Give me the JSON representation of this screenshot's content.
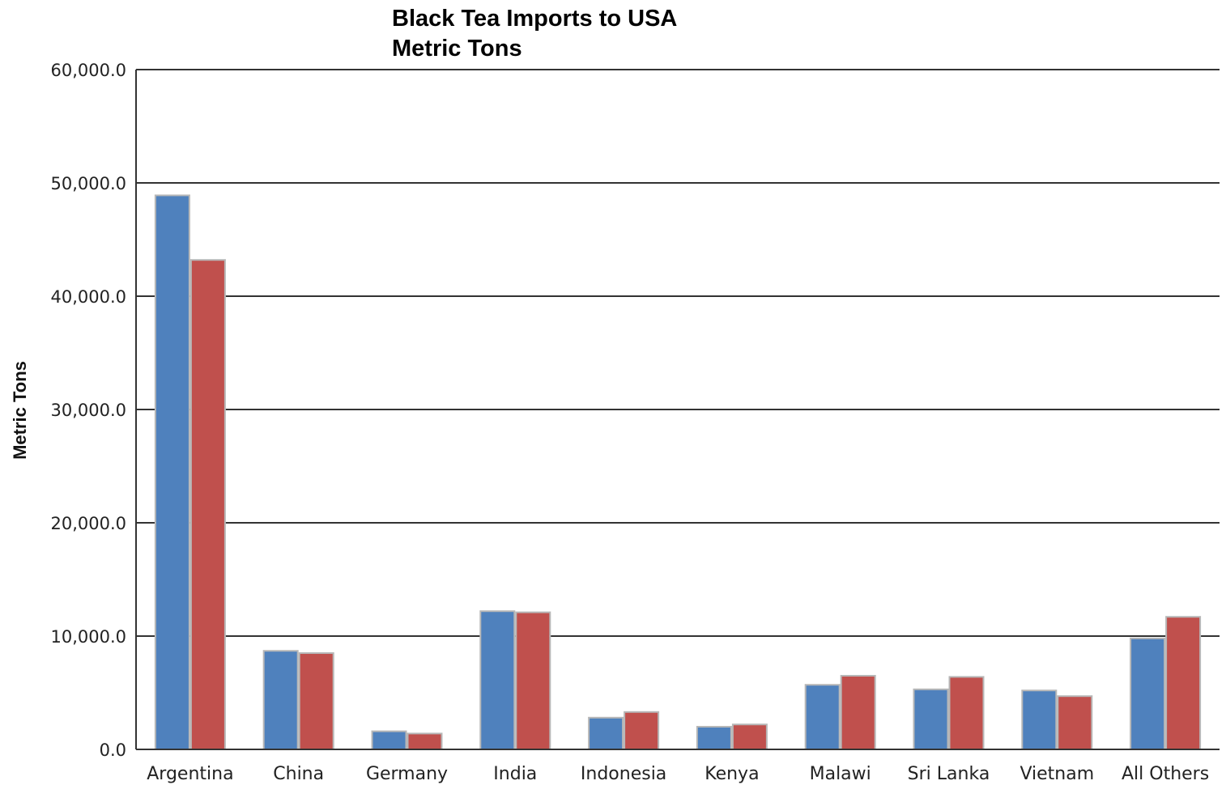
{
  "chart_data": {
    "type": "bar",
    "title": "Black Tea Imports to USA",
    "subtitle": "Metric Tons",
    "xlabel": "",
    "ylabel": "Metric Tons",
    "ylim": [
      0,
      60000
    ],
    "yticks": [
      "0.0",
      "10,000.0",
      "20,000.0",
      "30,000.0",
      "40,000.0",
      "50,000.0",
      "60,000.0"
    ],
    "grid": true,
    "legend": "none",
    "categories": [
      "Argentina",
      "China",
      "Germany",
      "India",
      "Indonesia",
      "Kenya",
      "Malawi",
      "Sri Lanka",
      "Vietnam",
      "All Others"
    ],
    "series": [
      {
        "color": "#4f81bd",
        "values": [
          48900,
          8700,
          1600,
          12200,
          2800,
          2000,
          5700,
          5300,
          5200,
          9800
        ]
      },
      {
        "color": "#c0504d",
        "values": [
          43200,
          8500,
          1400,
          12100,
          3300,
          2200,
          6500,
          6400,
          4700,
          11700
        ]
      }
    ]
  }
}
